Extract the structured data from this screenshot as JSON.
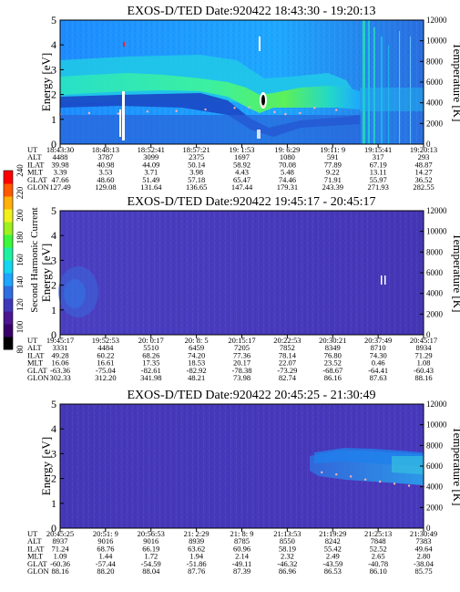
{
  "chart_data": {
    "type": "heatmap",
    "colorbar": {
      "label": "Second Harmonic Current",
      "ticks": [
        "80",
        "100",
        "120",
        "140",
        "160",
        "180",
        "200",
        "220",
        "240"
      ],
      "range": [
        80,
        240
      ],
      "colors": [
        "#000000",
        "#3a006a",
        "#4c1590",
        "#3f38b8",
        "#2f6ee0",
        "#1ea5ff",
        "#14d6f0",
        "#1ef2a2",
        "#3cf83c",
        "#9ef01e",
        "#f0f01e",
        "#ffb00a",
        "#ff5a00",
        "#ff0000"
      ]
    },
    "panels": [
      {
        "title": "EXOS-D/TED   Date:920422   18:43:30 - 19:20:13",
        "ylabel": "Energy [eV]",
        "y2label": "Temperature [K]",
        "ylim": [
          0,
          5
        ],
        "yticks": [
          "0",
          "1",
          "2",
          "3",
          "4",
          "5"
        ],
        "y2lim": [
          0,
          12000
        ],
        "y2ticks": [
          "0",
          "2000",
          "4000",
          "6000",
          "8000",
          "10000",
          "12000"
        ],
        "row_labels": [
          "UT",
          "ALT",
          "ILAT",
          "MLT",
          "GLAT",
          "GLON"
        ],
        "columns": [
          [
            "18:43:30",
            "4488",
            "39.98",
            "3.39",
            "47.66",
            "127.49"
          ],
          [
            "18:48:13",
            "3787",
            "40.98",
            "3.53",
            "48.60",
            "129.08"
          ],
          [
            "18:52:41",
            "3099",
            "44.09",
            "3.71",
            "51.49",
            "131.64"
          ],
          [
            "18:57:21",
            "2375",
            "50.14",
            "3.98",
            "57.18",
            "136.65"
          ],
          [
            "19: 1:53",
            "1697",
            "58.92",
            "4.43",
            "65.47",
            "147.44"
          ],
          [
            "19: 6:29",
            "1080",
            "70.08",
            "5.48",
            "74.46",
            "179.31"
          ],
          [
            "19:11: 9",
            "591",
            "77.89",
            "9.22",
            "71.91",
            "243.39"
          ],
          [
            "19:15:41",
            "317",
            "67.19",
            "13.11",
            "55.97",
            "271.93"
          ],
          [
            "19:20:13",
            "293",
            "48.87",
            "14.27",
            "36.52",
            "282.55"
          ]
        ],
        "temperature_trace": [
          [
            0,
            2900
          ],
          [
            0.08,
            3000
          ],
          [
            0.16,
            2950
          ],
          [
            0.24,
            3150
          ],
          [
            0.32,
            3200
          ],
          [
            0.4,
            3350
          ],
          [
            0.48,
            3500
          ],
          [
            0.52,
            3550
          ],
          [
            0.56,
            3700
          ],
          [
            0.59,
            3100
          ],
          [
            0.62,
            2900
          ],
          [
            0.66,
            3000
          ],
          [
            0.7,
            3500
          ],
          [
            0.76,
            3300
          ]
        ]
      },
      {
        "title": "EXOS-D/TED   Date:920422   19:45:17 - 20:45:17",
        "ylabel": "Energy [eV]",
        "y2label": "Temperature [K]",
        "ylim": [
          0,
          5
        ],
        "yticks": [
          "0",
          "1",
          "2",
          "3",
          "4",
          "5"
        ],
        "y2lim": [
          0,
          12000
        ],
        "y2ticks": [
          "0",
          "2000",
          "4000",
          "6000",
          "8000",
          "10000",
          "12000"
        ],
        "row_labels": [
          "UT",
          "ALT",
          "ILAT",
          "MLT",
          "GLAT",
          "GLON"
        ],
        "columns": [
          [
            "19:45:17",
            "3331",
            "49.28",
            "16.06",
            "-63.36",
            "302.33"
          ],
          [
            "19:52:53",
            "4484",
            "60.22",
            "16.61",
            "-75.04",
            "312.20"
          ],
          [
            "20: 0:17",
            "5510",
            "68.26",
            "17.35",
            "-82.61",
            "341.98"
          ],
          [
            "20: 8: 5",
            "6459",
            "74.20",
            "18.53",
            "-82.92",
            "48.21"
          ],
          [
            "20:15:17",
            "7205",
            "77.36",
            "20.17",
            "-78.38",
            "73.98"
          ],
          [
            "20:22:53",
            "7852",
            "78.14",
            "22.07",
            "-73.29",
            "82.74"
          ],
          [
            "20:30:21",
            "8349",
            "76.80",
            "23.52",
            "-68.67",
            "86.16"
          ],
          [
            "20:37:49",
            "8710",
            "74.30",
            "0.46",
            "-64.41",
            "87.63"
          ],
          [
            "20:45:17",
            "8934",
            "71.29",
            "1.08",
            "-60.43",
            "88.16"
          ]
        ]
      },
      {
        "title": "EXOS-D/TED   Date:920422   20:45:25 - 21:30:49",
        "ylabel": "Energy [eV]",
        "y2label": "Temperature [K]",
        "ylim": [
          0,
          5
        ],
        "yticks": [
          "0",
          "1",
          "2",
          "3",
          "4",
          "5"
        ],
        "y2lim": [
          0,
          12000
        ],
        "y2ticks": [
          "0",
          "2000",
          "4000",
          "6000",
          "8000",
          "10000",
          "12000"
        ],
        "row_labels": [
          "UT",
          "ALT",
          "ILAT",
          "MLT",
          "GLAT",
          "GLON"
        ],
        "columns": [
          [
            "20:45:25",
            "8937",
            "71.24",
            "1.09",
            "-60.36",
            "88.16"
          ],
          [
            "20:51: 9",
            "9016",
            "68.76",
            "1.44",
            "-57.44",
            "88.20"
          ],
          [
            "20:56:53",
            "9016",
            "66.19",
            "1.72",
            "-54.59",
            "88.04"
          ],
          [
            "21: 2:29",
            "8939",
            "63.62",
            "1.94",
            "-51.86",
            "87.76"
          ],
          [
            "21: 8: 9",
            "8785",
            "60.96",
            "2.14",
            "-49.11",
            "87.39"
          ],
          [
            "21:13:53",
            "8550",
            "58.19",
            "2.32",
            "-46.32",
            "86.96"
          ],
          [
            "21:19:29",
            "8242",
            "55.42",
            "2.49",
            "-43.59",
            "86.53"
          ],
          [
            "21:25:13",
            "7848",
            "52.52",
            "2.65",
            "-40.78",
            "86.10"
          ],
          [
            "21:30:49",
            "7383",
            "49.64",
            "2.80",
            "-38.04",
            "85.75"
          ]
        ],
        "temperature_trace": [
          [
            0.72,
            5400
          ],
          [
            0.76,
            5200
          ],
          [
            0.8,
            5000
          ],
          [
            0.84,
            4700
          ],
          [
            0.88,
            4500
          ],
          [
            0.92,
            4300
          ],
          [
            0.96,
            4100
          ],
          [
            1.0,
            4000
          ]
        ]
      }
    ]
  }
}
